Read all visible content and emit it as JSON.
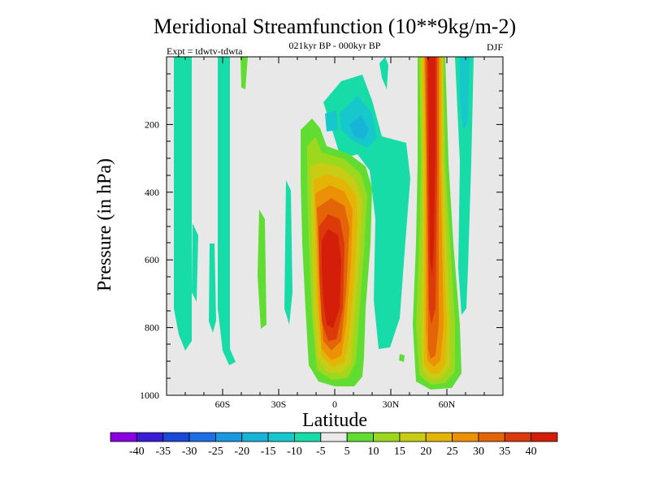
{
  "chart_data": {
    "type": "contour",
    "title": "Meridional Streamfunction (10**9kg/m-2)",
    "subtitle": "021kyr BP - 000kyr BP",
    "left_label": "Expt = tdwtv-tdwta",
    "season": "DJF",
    "xlabel": "Latitude",
    "ylabel": "Pressure (in hPa)",
    "xlim": [
      -90,
      90
    ],
    "ylim": [
      0,
      1000
    ],
    "y_inverted": true,
    "x_ticks": [
      {
        "value": -60,
        "label": "60S"
      },
      {
        "value": -30,
        "label": "30S"
      },
      {
        "value": 0,
        "label": "0"
      },
      {
        "value": 30,
        "label": "30N"
      },
      {
        "value": 60,
        "label": "60N"
      }
    ],
    "y_ticks": [
      {
        "value": 200,
        "label": "200"
      },
      {
        "value": 400,
        "label": "400"
      },
      {
        "value": 600,
        "label": "600"
      },
      {
        "value": 800,
        "label": "800"
      },
      {
        "value": 1000,
        "label": "1000"
      }
    ],
    "colorbar": {
      "labels": [
        "-40",
        "-35",
        "-30",
        "-25",
        "-20",
        "-15",
        "-10",
        "-5",
        "5",
        "10",
        "15",
        "20",
        "25",
        "30",
        "35",
        "40"
      ],
      "colors": [
        "#8a00e0",
        "#3a1cd6",
        "#1c48d8",
        "#1e6ee8",
        "#1a98e0",
        "#18b4d8",
        "#16c8cc",
        "#18dca8",
        "#eaeaea",
        "#60dc32",
        "#9cd81e",
        "#c8cc14",
        "#e4b406",
        "#ec9006",
        "#e46408",
        "#dc3a0a",
        "#d41e0a"
      ]
    },
    "features": [
      {
        "name": "Cross-equatorial positive cell",
        "center_lat": -1,
        "center_p": 620,
        "peak_level": "40"
      },
      {
        "name": "NH midlatitude positive cell",
        "center_lat": 52,
        "center_p": 500,
        "peak_level": "40"
      },
      {
        "name": "Upper tropospheric negative region",
        "center_lat": 8,
        "center_p": 180,
        "peak_level": "-20"
      }
    ]
  }
}
